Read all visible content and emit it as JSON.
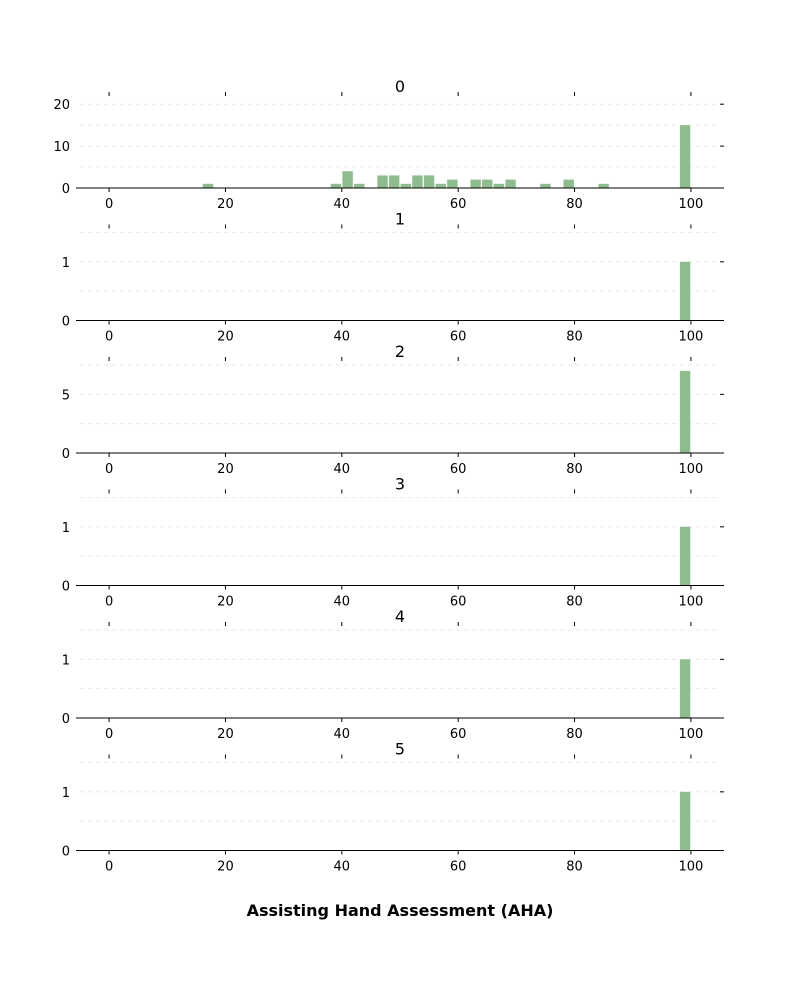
{
  "chart_data": {
    "type": "bar",
    "kind": "histogram-small-multiples",
    "xlabel": "Assisting Hand Assessment (AHA)",
    "xlim": [
      -5,
      105
    ],
    "xticks": [
      0,
      20,
      40,
      60,
      80,
      100
    ],
    "bin_width": 2,
    "bar_color": "#8fbc8f",
    "grid": "horizontal dashed",
    "panels": [
      {
        "title": "0",
        "ylim": [
          0,
          21
        ],
        "yticks": [
          0,
          10,
          20
        ],
        "bins": [
          {
            "x": 17,
            "count": 1
          },
          {
            "x": 39,
            "count": 1
          },
          {
            "x": 41,
            "count": 4
          },
          {
            "x": 43,
            "count": 1
          },
          {
            "x": 47,
            "count": 3
          },
          {
            "x": 49,
            "count": 3
          },
          {
            "x": 51,
            "count": 1
          },
          {
            "x": 53,
            "count": 3
          },
          {
            "x": 55,
            "count": 3
          },
          {
            "x": 57,
            "count": 1
          },
          {
            "x": 59,
            "count": 2
          },
          {
            "x": 63,
            "count": 2
          },
          {
            "x": 65,
            "count": 2
          },
          {
            "x": 67,
            "count": 1
          },
          {
            "x": 69,
            "count": 2
          },
          {
            "x": 75,
            "count": 1
          },
          {
            "x": 79,
            "count": 2
          },
          {
            "x": 85,
            "count": 1
          },
          {
            "x": 99,
            "count": 15
          }
        ]
      },
      {
        "title": "1",
        "ylim": [
          0,
          1.5
        ],
        "yticks": [
          0,
          1
        ],
        "bins": [
          {
            "x": 99,
            "count": 1
          }
        ]
      },
      {
        "title": "2",
        "ylim": [
          0,
          7.5
        ],
        "yticks": [
          0,
          5
        ],
        "bins": [
          {
            "x": 99,
            "count": 7
          }
        ]
      },
      {
        "title": "3",
        "ylim": [
          0,
          1.5
        ],
        "yticks": [
          0,
          1
        ],
        "bins": [
          {
            "x": 99,
            "count": 1
          }
        ]
      },
      {
        "title": "4",
        "ylim": [
          0,
          1.5
        ],
        "yticks": [
          0,
          1
        ],
        "bins": [
          {
            "x": 99,
            "count": 1
          }
        ]
      },
      {
        "title": "5",
        "ylim": [
          0,
          1.5
        ],
        "yticks": [
          0,
          1
        ],
        "bins": [
          {
            "x": 99,
            "count": 1
          }
        ]
      }
    ]
  }
}
